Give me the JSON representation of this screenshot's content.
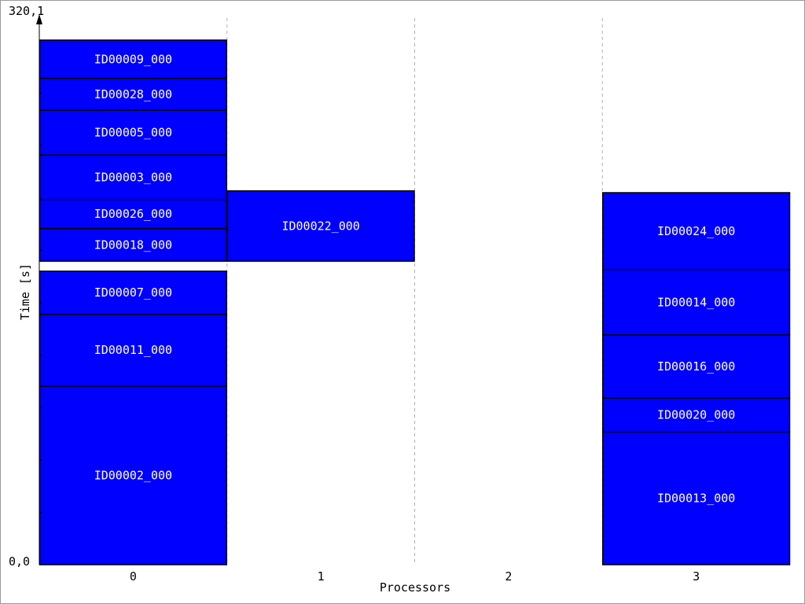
{
  "chart_data": {
    "type": "gantt",
    "xlabel": "Processors",
    "ylabel": "Time [s]",
    "ymax_label": "320,1",
    "ymin_label": "0,0",
    "ylim": [
      0,
      320.1
    ],
    "grid": "dashed-vertical",
    "processors": [
      "0",
      "1",
      "2",
      "3"
    ],
    "bar_color": "#0000ff",
    "tasks": [
      {
        "processor": 0,
        "name": "ID00002_000",
        "start": 0.0,
        "end": 109.0
      },
      {
        "processor": 0,
        "name": "ID00011_000",
        "start": 109.0,
        "end": 152.8
      },
      {
        "processor": 0,
        "name": "ID00007_000",
        "start": 152.8,
        "end": 179.1
      },
      {
        "processor": 0,
        "name": "ID00018_000",
        "start": 185.2,
        "end": 205.1
      },
      {
        "processor": 0,
        "name": "ID00026_000",
        "start": 205.1,
        "end": 222.8
      },
      {
        "processor": 0,
        "name": "ID00003_000",
        "start": 222.8,
        "end": 250.0
      },
      {
        "processor": 0,
        "name": "ID00005_000",
        "start": 250.0,
        "end": 277.4
      },
      {
        "processor": 0,
        "name": "ID00028_000",
        "start": 277.4,
        "end": 296.8
      },
      {
        "processor": 0,
        "name": "ID00009_000",
        "start": 296.8,
        "end": 320.1
      },
      {
        "processor": 1,
        "name": "ID00022_000",
        "start": 185.2,
        "end": 228.1
      },
      {
        "processor": 3,
        "name": "ID00013_000",
        "start": 0.0,
        "end": 81.1
      },
      {
        "processor": 3,
        "name": "ID00020_000",
        "start": 81.1,
        "end": 101.7
      },
      {
        "processor": 3,
        "name": "ID00016_000",
        "start": 101.7,
        "end": 140.2
      },
      {
        "processor": 3,
        "name": "ID00014_000",
        "start": 140.2,
        "end": 180.1
      },
      {
        "processor": 3,
        "name": "ID00024_000",
        "start": 180.1,
        "end": 227.0
      }
    ]
  }
}
